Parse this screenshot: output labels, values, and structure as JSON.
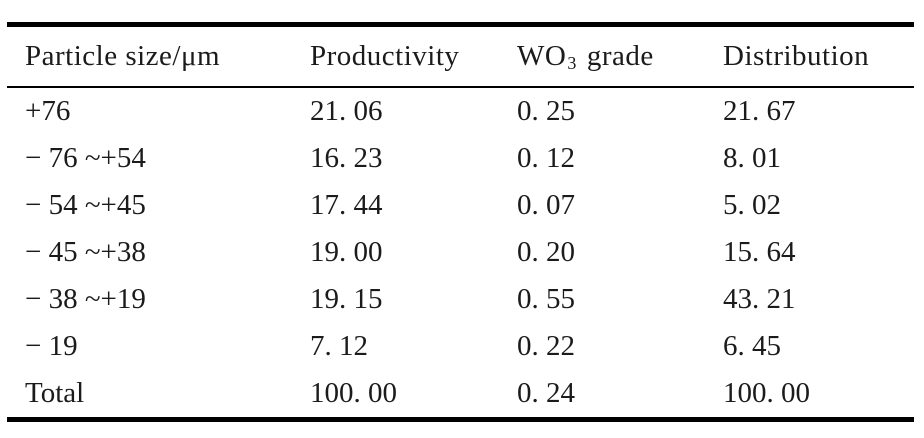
{
  "page": {
    "background": "#ffffff",
    "text_color": "#1b1b1b",
    "rule_color": "#000000"
  },
  "table": {
    "header": {
      "particle_size": "Particle size/μm",
      "productivity": "Productivity",
      "wo3_base": "WO",
      "wo3_sub": "3",
      "wo3_rest": "grade",
      "distribution": "Distribution"
    },
    "rows": [
      [
        "+76",
        "21. 06",
        "0. 25",
        "21. 67"
      ],
      [
        "− 76 ~+54",
        "16. 23",
        "0. 12",
        "8. 01"
      ],
      [
        "− 54 ~+45",
        "17. 44",
        "0. 07",
        "5. 02"
      ],
      [
        "− 45 ~+38",
        "19. 00",
        "0. 20",
        "15. 64"
      ],
      [
        "− 38 ~+19",
        "19. 15",
        "0. 55",
        "43. 21"
      ],
      [
        "− 19",
        "7. 12",
        "0. 22",
        "6. 45"
      ],
      [
        "Total",
        "100. 00",
        "0. 24",
        "100. 00"
      ]
    ]
  }
}
